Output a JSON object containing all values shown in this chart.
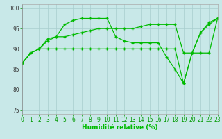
{
  "xlabel": "Humidité relative (%)",
  "bg_color": "#c8e8e8",
  "grid_color": "#a8cece",
  "line_color": "#00bb00",
  "xlim": [
    0,
    23
  ],
  "ylim": [
    74,
    101
  ],
  "yticks": [
    75,
    80,
    85,
    90,
    95,
    100
  ],
  "xticks": [
    0,
    1,
    2,
    3,
    4,
    5,
    6,
    7,
    8,
    9,
    10,
    11,
    12,
    13,
    14,
    15,
    16,
    17,
    18,
    19,
    20,
    21,
    22,
    23
  ],
  "series": [
    [
      86.5,
      89,
      90,
      92,
      93,
      96,
      97,
      97.5,
      97.5,
      97.5,
      97.5,
      93,
      92,
      91.5,
      91.5,
      91.5,
      91.5,
      88,
      85,
      81.5,
      89,
      94,
      96,
      97.5
    ],
    [
      86.5,
      89,
      90,
      92.5,
      93,
      93,
      93.5,
      94,
      94.5,
      95,
      95,
      95,
      95,
      95,
      95.5,
      96,
      96,
      96,
      96,
      89,
      89,
      94,
      96.5,
      97.5
    ],
    [
      86.5,
      89,
      90,
      90,
      90,
      90,
      90,
      90,
      90,
      90,
      90,
      90,
      90,
      90,
      90,
      90,
      90,
      90,
      90,
      81.5,
      89,
      89,
      89,
      97.5
    ]
  ]
}
